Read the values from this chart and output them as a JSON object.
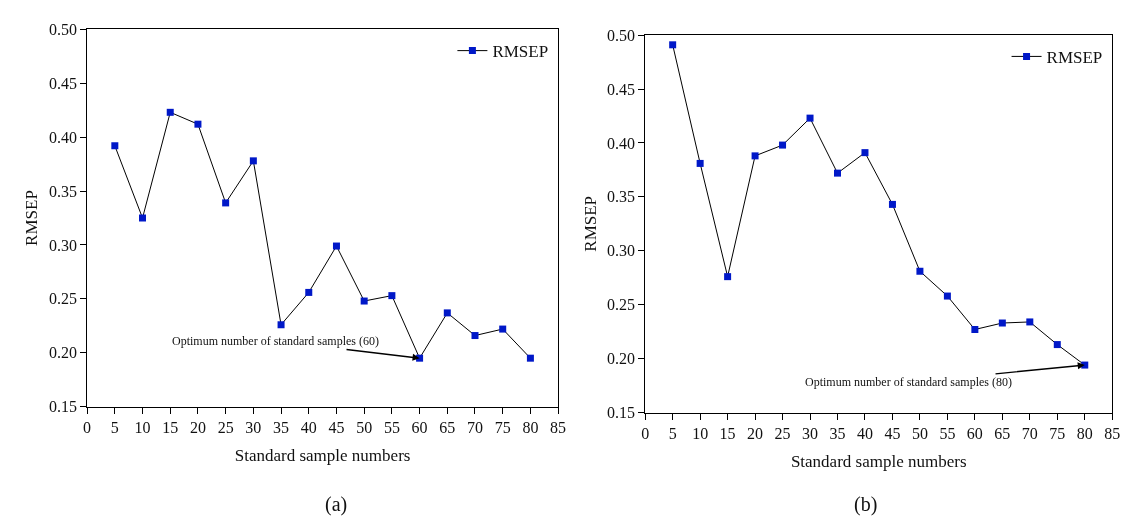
{
  "chart_data": [
    {
      "type": "line",
      "xlabel": "Standard sample numbers",
      "ylabel": "RMSEP",
      "x": [
        5,
        10,
        15,
        20,
        25,
        30,
        35,
        40,
        45,
        50,
        55,
        60,
        65,
        70,
        75,
        80
      ],
      "series": [
        {
          "name": "RMSEP",
          "color": "#0018c8",
          "values": [
            0.392,
            0.325,
            0.423,
            0.412,
            0.339,
            0.378,
            0.226,
            0.256,
            0.299,
            0.248,
            0.253,
            0.195,
            0.237,
            0.216,
            0.222,
            0.195
          ]
        }
      ],
      "xlim": [
        0,
        85
      ],
      "xticks": [
        0,
        5,
        10,
        15,
        20,
        25,
        30,
        35,
        40,
        45,
        50,
        55,
        60,
        65,
        70,
        75,
        80,
        85
      ],
      "ylim": [
        0.15,
        0.5
      ],
      "yticks": [
        {
          "value": 0.15,
          "label": "0.15"
        },
        {
          "value": 0.2,
          "label": "0.20"
        },
        {
          "value": 0.25,
          "label": "0.25"
        },
        {
          "value": 0.3,
          "label": "0.30"
        },
        {
          "value": 0.35,
          "label": "0.35"
        },
        {
          "value": 0.4,
          "label": "0.40"
        },
        {
          "value": 0.45,
          "label": "0.45"
        },
        {
          "value": 0.5,
          "label": "0.50"
        }
      ],
      "marker": "square",
      "line_style": "solid",
      "grid": false,
      "legend": "top right",
      "annotations": [
        {
          "text": "Optimum number of standard samples (60)",
          "x": 60,
          "y": 0.195
        },
        "(a)"
      ]
    },
    {
      "type": "line",
      "xlabel": "Standard sample numbers",
      "ylabel": "RMSEP",
      "x": [
        5,
        10,
        15,
        20,
        25,
        30,
        35,
        40,
        45,
        50,
        55,
        60,
        65,
        70,
        75,
        80
      ],
      "series": [
        {
          "name": "RMSEP",
          "color": "#0018c8",
          "values": [
            0.491,
            0.381,
            0.276,
            0.388,
            0.398,
            0.423,
            0.372,
            0.391,
            0.343,
            0.281,
            0.258,
            0.227,
            0.233,
            0.234,
            0.213,
            0.194
          ]
        }
      ],
      "xlim": [
        0,
        85
      ],
      "xticks": [
        0,
        5,
        10,
        15,
        20,
        25,
        30,
        35,
        40,
        45,
        50,
        55,
        60,
        65,
        70,
        75,
        80,
        85
      ],
      "ylim": [
        0.15,
        0.5
      ],
      "yticks": [
        {
          "value": 0.15,
          "label": "0.15"
        },
        {
          "value": 0.2,
          "label": "0.20"
        },
        {
          "value": 0.25,
          "label": "0.25"
        },
        {
          "value": 0.3,
          "label": "0.30"
        },
        {
          "value": 0.35,
          "label": "0.35"
        },
        {
          "value": 0.4,
          "label": "0.40"
        },
        {
          "value": 0.45,
          "label": "0.45"
        },
        {
          "value": 0.5,
          "label": "0.50"
        }
      ],
      "marker": "square",
      "line_style": "solid",
      "grid": false,
      "legend": "top right",
      "annotations": [
        {
          "text": "Optimum number of standard samples (80)",
          "x": 80,
          "y": 0.194
        },
        "(b)"
      ]
    }
  ]
}
